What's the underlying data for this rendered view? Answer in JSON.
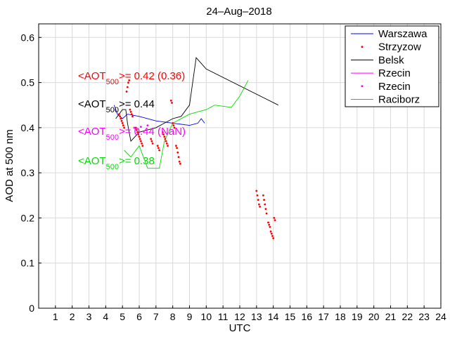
{
  "chart_data": {
    "type": "line",
    "title": "24–Aug–2018",
    "xlabel": "UTC",
    "ylabel": "AOD at 500 nm",
    "xlim": [
      0,
      24
    ],
    "ylim": [
      0,
      0.63
    ],
    "xticks": [
      "1",
      "2",
      "3",
      "4",
      "5",
      "6",
      "7",
      "8",
      "9",
      "10",
      "11",
      "12",
      "13",
      "14",
      "15",
      "16",
      "17",
      "18",
      "19",
      "20",
      "21",
      "22",
      "23",
      "24"
    ],
    "yticks": [
      "0",
      "0.1",
      "0.2",
      "0.3",
      "0.4",
      "0.5",
      "0.6"
    ],
    "grid": true,
    "legend_position": "top-right",
    "legend": [
      {
        "name": "Warszawa",
        "color": "#0000ff",
        "style": "line"
      },
      {
        "name": "Strzyzow",
        "color": "#ff0000",
        "style": "dots"
      },
      {
        "name": "Belsk",
        "color": "#000000",
        "style": "line"
      },
      {
        "name": "Rzecin",
        "color": "#ff00ff",
        "style": "line"
      },
      {
        "name": "Rzecin",
        "color": "#ff00ff",
        "style": "dots"
      },
      {
        "name": "Raciborz",
        "color": "#00dd00",
        "style": "line"
      }
    ],
    "annotations": [
      {
        "prefix": "<AOT",
        "sub": "500",
        "suffix": ">= 0.42 (0.36)",
        "color": "#ff0000"
      },
      {
        "prefix": "<AOT",
        "sub": "500",
        "suffix": ">= 0.44",
        "color": "#000000"
      },
      {
        "prefix": "<AOT",
        "sub": "500",
        "suffix": ">= 0.44 (NaN)",
        "color": "#ff00ff"
      },
      {
        "prefix": "<AOT",
        "sub": "500",
        "suffix": ">= 0.38",
        "color": "#00dd00"
      }
    ],
    "series": [
      {
        "name": "Warszawa",
        "color": "#0000ff",
        "style": "line",
        "points": [
          [
            4.5,
            0.45
          ],
          [
            4.7,
            0.43
          ],
          [
            5.0,
            0.42
          ],
          [
            5.3,
            0.43
          ],
          [
            6.0,
            0.425
          ],
          [
            7.0,
            0.415
          ],
          [
            8.0,
            0.41
          ],
          [
            9.0,
            0.405
          ],
          [
            9.5,
            0.41
          ],
          [
            9.7,
            0.42
          ],
          [
            9.9,
            0.41
          ]
        ]
      },
      {
        "name": "Belsk",
        "color": "#000000",
        "style": "line",
        "points": [
          [
            4.6,
            0.42
          ],
          [
            5.0,
            0.44
          ],
          [
            5.2,
            0.44
          ],
          [
            5.3,
            0.41
          ],
          [
            5.5,
            0.37
          ],
          [
            6.0,
            0.39
          ],
          [
            6.5,
            0.395
          ],
          [
            7.0,
            0.4
          ],
          [
            7.5,
            0.41
          ],
          [
            8.0,
            0.42
          ],
          [
            8.5,
            0.425
          ],
          [
            9.0,
            0.45
          ],
          [
            9.4,
            0.555
          ],
          [
            10.0,
            0.53
          ],
          [
            14.3,
            0.45
          ]
        ]
      },
      {
        "name": "Raciborz",
        "color": "#00dd00",
        "style": "line",
        "points": [
          [
            5.1,
            0.35
          ],
          [
            5.5,
            0.335
          ],
          [
            6.0,
            0.36
          ],
          [
            6.5,
            0.31
          ],
          [
            7.2,
            0.31
          ],
          [
            7.5,
            0.37
          ],
          [
            8.0,
            0.41
          ],
          [
            9.0,
            0.43
          ],
          [
            10.0,
            0.44
          ],
          [
            10.5,
            0.45
          ],
          [
            11.5,
            0.445
          ],
          [
            12.0,
            0.47
          ],
          [
            12.5,
            0.505
          ]
        ]
      },
      {
        "name": "Strzyzow",
        "color": "#ff0000",
        "style": "dots",
        "points": [
          [
            4.8,
            0.43
          ],
          [
            4.85,
            0.425
          ],
          [
            4.9,
            0.42
          ],
          [
            4.95,
            0.415
          ],
          [
            5.0,
            0.41
          ],
          [
            5.05,
            0.405
          ],
          [
            5.1,
            0.4
          ],
          [
            5.25,
            0.48
          ],
          [
            5.3,
            0.49
          ],
          [
            5.35,
            0.5
          ],
          [
            5.4,
            0.505
          ],
          [
            5.45,
            0.44
          ],
          [
            5.5,
            0.435
          ],
          [
            5.55,
            0.43
          ],
          [
            5.6,
            0.425
          ],
          [
            5.8,
            0.4
          ],
          [
            5.85,
            0.395
          ],
          [
            5.9,
            0.39
          ],
          [
            5.95,
            0.385
          ],
          [
            6.0,
            0.38
          ],
          [
            6.05,
            0.375
          ],
          [
            6.1,
            0.37
          ],
          [
            6.15,
            0.365
          ],
          [
            6.2,
            0.36
          ],
          [
            6.7,
            0.375
          ],
          [
            6.75,
            0.37
          ],
          [
            6.8,
            0.365
          ],
          [
            7.1,
            0.36
          ],
          [
            7.15,
            0.355
          ],
          [
            7.2,
            0.35
          ],
          [
            7.4,
            0.39
          ],
          [
            7.45,
            0.385
          ],
          [
            7.5,
            0.38
          ],
          [
            7.55,
            0.375
          ],
          [
            7.6,
            0.37
          ],
          [
            7.65,
            0.365
          ],
          [
            7.7,
            0.36
          ],
          [
            7.9,
            0.46
          ],
          [
            7.95,
            0.455
          ],
          [
            8.0,
            0.41
          ],
          [
            8.05,
            0.405
          ],
          [
            8.1,
            0.4
          ],
          [
            8.2,
            0.36
          ],
          [
            8.25,
            0.355
          ],
          [
            8.3,
            0.345
          ],
          [
            8.35,
            0.335
          ],
          [
            8.4,
            0.325
          ],
          [
            8.45,
            0.32
          ],
          [
            13.0,
            0.26
          ],
          [
            13.05,
            0.25
          ],
          [
            13.1,
            0.24
          ],
          [
            13.15,
            0.23
          ],
          [
            13.2,
            0.225
          ],
          [
            13.4,
            0.25
          ],
          [
            13.45,
            0.24
          ],
          [
            13.5,
            0.23
          ],
          [
            13.55,
            0.22
          ],
          [
            13.6,
            0.21
          ],
          [
            13.7,
            0.19
          ],
          [
            13.75,
            0.185
          ],
          [
            13.8,
            0.18
          ],
          [
            13.85,
            0.17
          ],
          [
            13.9,
            0.165
          ],
          [
            13.95,
            0.16
          ],
          [
            14.0,
            0.155
          ],
          [
            14.05,
            0.2
          ],
          [
            14.1,
            0.195
          ]
        ]
      },
      {
        "name": "Rzecin",
        "color": "#ff00ff",
        "style": "dots",
        "points": [
          [
            5.7,
            0.4
          ],
          [
            6.1,
            0.402
          ],
          [
            6.5,
            0.405
          ]
        ]
      }
    ]
  }
}
